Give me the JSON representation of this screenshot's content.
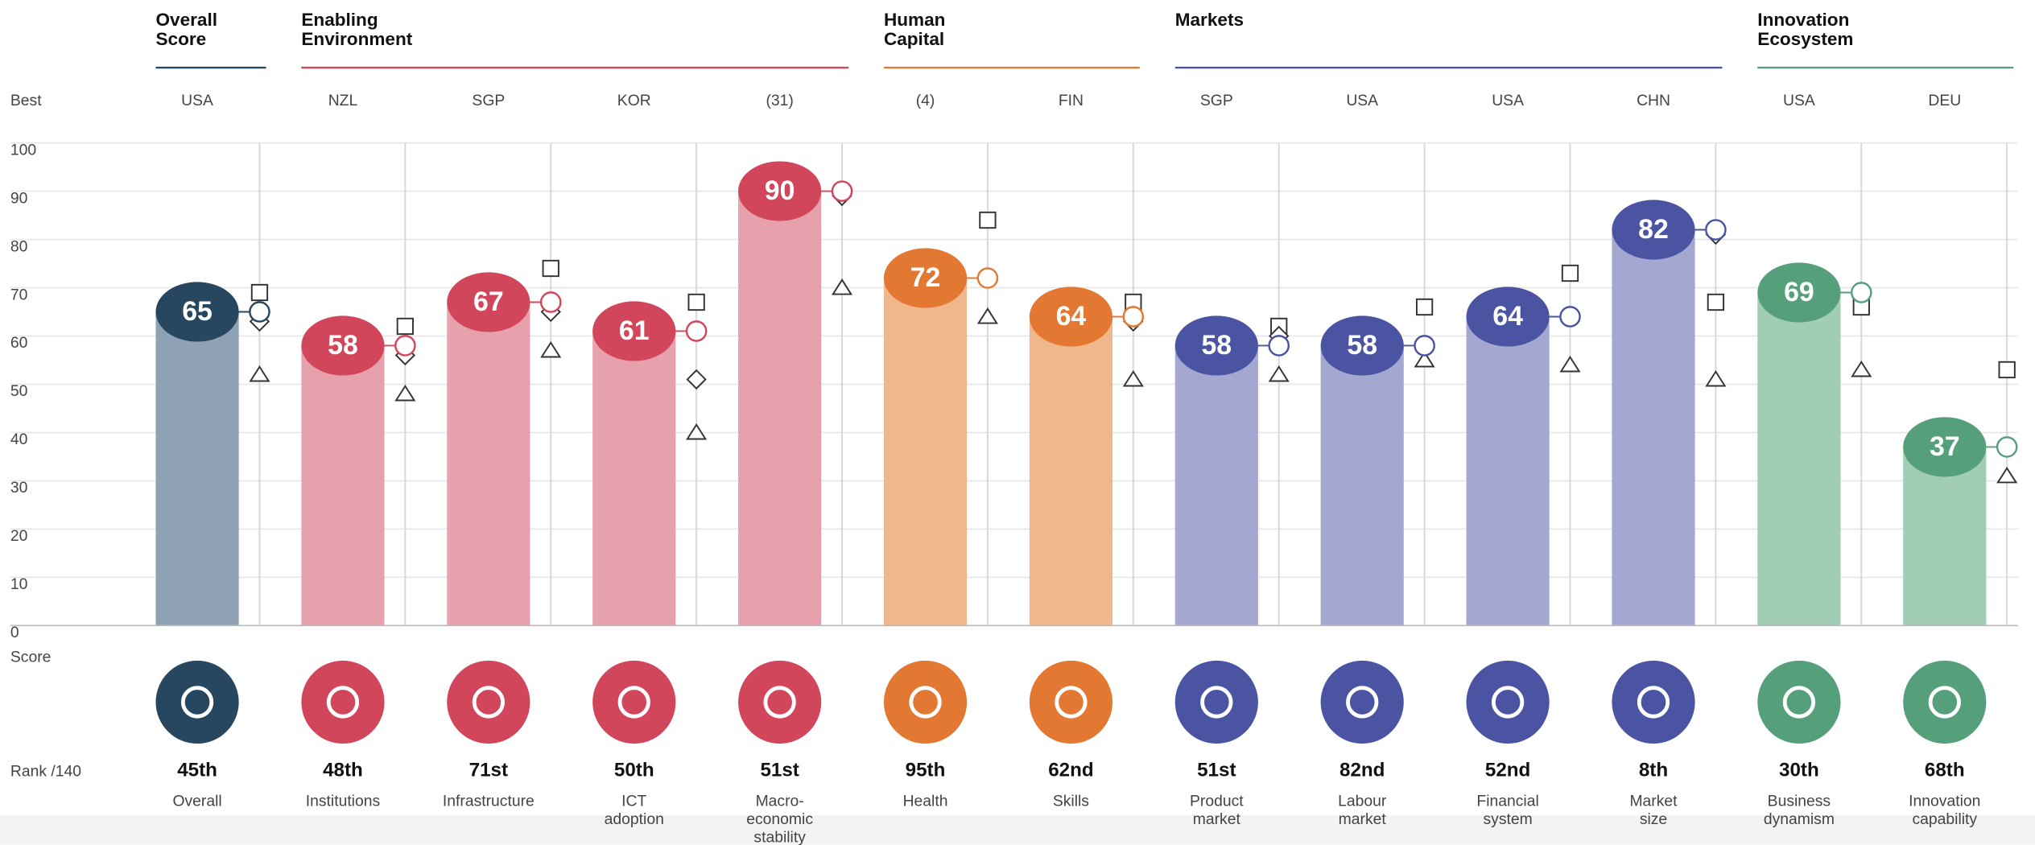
{
  "chart_data": {
    "type": "bar",
    "best_label": "Best",
    "score_label": "Score",
    "rank_label": "Rank /140",
    "ylim": [
      0,
      100
    ],
    "yticks": [
      0,
      10,
      20,
      30,
      40,
      50,
      60,
      70,
      80,
      90,
      100
    ],
    "grid": true,
    "groups": [
      {
        "title": "Overall\nScore",
        "color": "#274760",
        "bar_color": "#8ea2b3",
        "pillars": [
          {
            "name": "Overall",
            "best": "USA",
            "score": 65,
            "rank": "45th",
            "circle": 65,
            "diamond": 63,
            "square": 69,
            "triangle": 52
          }
        ]
      },
      {
        "title": "Enabling\nEnvironment",
        "color": "#d1465a",
        "bar_color": "#e6a1ad",
        "pillars": [
          {
            "name": "Institutions",
            "best": "NZL",
            "score": 58,
            "rank": "48th",
            "circle": 58,
            "diamond": 56,
            "square": 62,
            "triangle": 48
          },
          {
            "name": "Infrastructure",
            "best": "SGP",
            "score": 67,
            "rank": "71st",
            "circle": 67,
            "diamond": 65,
            "square": 74,
            "triangle": 57
          },
          {
            "name": "ICT\nadoption",
            "best": "KOR",
            "score": 61,
            "rank": "50th",
            "circle": 61,
            "diamond": 51,
            "square": 67,
            "triangle": 40
          },
          {
            "name": "Macro-\neconomic\nstability",
            "best": "(31)",
            "score": 90,
            "rank": "51st",
            "circle": 90,
            "diamond": 89,
            "square": null,
            "triangle": 70
          }
        ]
      },
      {
        "title": "Human\nCapital",
        "color": "#e37833",
        "bar_color": "#f0b68c",
        "pillars": [
          {
            "name": "Health",
            "best": "(4)",
            "score": 72,
            "rank": "95th",
            "circle": 72,
            "diamond": null,
            "square": 84,
            "triangle": 64
          },
          {
            "name": "Skills",
            "best": "FIN",
            "score": 64,
            "rank": "62nd",
            "circle": 64,
            "diamond": 63,
            "square": 67,
            "triangle": 51
          }
        ]
      },
      {
        "title": "Markets",
        "color": "#4a54a2",
        "bar_color": "#a4a8d1",
        "pillars": [
          {
            "name": "Product\nmarket",
            "best": "SGP",
            "score": 58,
            "rank": "51st",
            "circle": 58,
            "diamond": 60,
            "square": 62,
            "triangle": 52
          },
          {
            "name": "Labour\nmarket",
            "best": "USA",
            "score": 58,
            "rank": "82nd",
            "circle": 58,
            "diamond": null,
            "square": 66,
            "triangle": 55
          },
          {
            "name": "Financial\nsystem",
            "best": "USA",
            "score": 64,
            "rank": "52nd",
            "circle": 64,
            "diamond": null,
            "square": 73,
            "triangle": 54
          },
          {
            "name": "Market\nsize",
            "best": "CHN",
            "score": 82,
            "rank": "8th",
            "circle": 82,
            "diamond": 81,
            "square": 67,
            "triangle": 51
          }
        ]
      },
      {
        "title": "Innovation\nEcosystem",
        "color": "#55a07b",
        "bar_color": "#a0cdb3",
        "pillars": [
          {
            "name": "Business\ndynamism",
            "best": "USA",
            "score": 69,
            "rank": "30th",
            "circle": 69,
            "diamond": null,
            "square": 66,
            "triangle": 53
          },
          {
            "name": "Innovation\ncapability",
            "best": "DEU",
            "score": 37,
            "rank": "68th",
            "circle": 37,
            "diamond": null,
            "square": 53,
            "triangle": 31
          }
        ]
      }
    ]
  }
}
